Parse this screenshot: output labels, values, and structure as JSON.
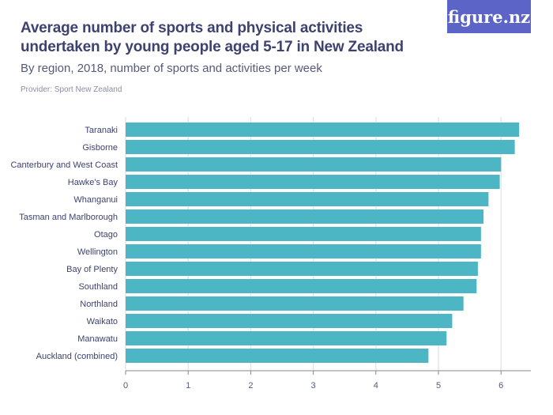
{
  "header": {
    "title": "Average number of sports and physical activities undertaken by young people aged 5-17 in New Zealand",
    "subtitle": "By region, 2018, number of sports and activities per week",
    "provider": "Provider: Sport New Zealand",
    "logo": "figure.nz"
  },
  "colors": {
    "bar": "#4db6c4",
    "grid": "#e6e6e6",
    "axis": "#888888"
  },
  "chart_data": {
    "type": "bar",
    "orientation": "horizontal",
    "title": "Average number of sports and physical activities undertaken by young people aged 5-17 in New Zealand",
    "categories": [
      "Taranaki",
      "Gisborne",
      "Canterbury and West Coast",
      "Hawke's Bay",
      "Whanganui",
      "Tasman and Marlborough",
      "Otago",
      "Wellington",
      "Bay of Plenty",
      "Southland",
      "Northland",
      "Waikato",
      "Manawatu",
      "Auckland (combined)"
    ],
    "values": [
      6.29,
      6.22,
      6.0,
      5.98,
      5.8,
      5.72,
      5.68,
      5.68,
      5.63,
      5.61,
      5.4,
      5.22,
      5.13,
      4.84
    ],
    "xlabel": "",
    "ylabel": "",
    "xlim": [
      0,
      6.47
    ],
    "xticks": [
      "0",
      "1",
      "2",
      "3",
      "4",
      "5",
      "6"
    ],
    "grid": true
  }
}
